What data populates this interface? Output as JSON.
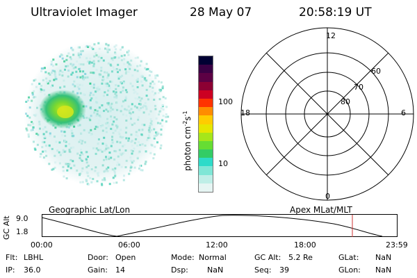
{
  "header": {
    "instrument": "Ultraviolet Imager",
    "date": "28 May 07",
    "time": "20:58:19 UT"
  },
  "colorbar": {
    "label": "photon cm",
    "label_sup1": "-2",
    "label_s": "s",
    "label_sup2": "-1",
    "tick_100": "100",
    "tick_10": "10",
    "colors": [
      "#e6f5f3",
      "#bfeee7",
      "#7fe6d6",
      "#2edbc9",
      "#33cc66",
      "#66dd33",
      "#a6e61a",
      "#e6e600",
      "#ffcc00",
      "#ff8c00",
      "#ff3300",
      "#cc0022",
      "#8c0033",
      "#5c0044",
      "#3a0044",
      "#000033"
    ]
  },
  "polar_grid": {
    "mlt_12": "12",
    "mlt_18": "18",
    "mlt_6": "6",
    "mlt_0": "0",
    "lat_60": "60",
    "lat_70": "70",
    "lat_80": "80"
  },
  "orbit_plot": {
    "left_label": "Geographic Lat/Lon",
    "right_label": "Apex MLat/MLT",
    "y_axis_title": "GC Alt",
    "y_max": "9.0",
    "y_min": "1.8",
    "x_ticks": [
      "00:00",
      "06:00",
      "12:00",
      "18:00",
      "23:59"
    ],
    "current_time_color": "#cc3333"
  },
  "metadata": {
    "flt_label": "Flt:",
    "flt_value": "LBHL",
    "door_label": "Door:",
    "door_value": "Open",
    "mode_label": "Mode:",
    "mode_value": "Normal",
    "gcalt_label": "GC Alt:",
    "gcalt_value": "5.2 Re",
    "glat_label": "GLat:",
    "glat_value": "NaN",
    "ip_label": "IP:",
    "ip_value": "36.0",
    "gain_label": "Gain:",
    "gain_value": "14",
    "dsp_label": "Dsp:",
    "dsp_value": "NaN",
    "seq_label": "Seq:",
    "seq_value": "39",
    "glon_label": "GLon:",
    "glon_value": "NaN"
  }
}
